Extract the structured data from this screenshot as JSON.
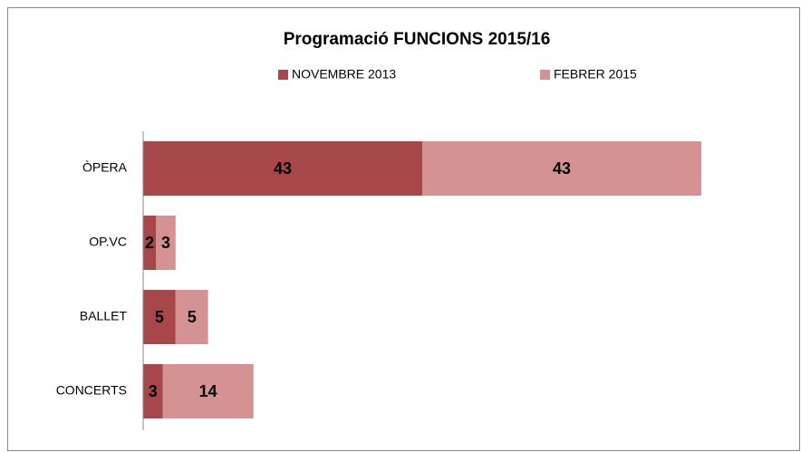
{
  "chart_data": {
    "type": "stacked-bar-horizontal",
    "title": "Programació FUNCIONS 2015/16",
    "categories": [
      "ÒPERA",
      "OP.VC",
      "BALLET",
      "CONCERTS"
    ],
    "series": [
      {
        "name": "NOVEMBRE 2013",
        "color": "#a8474a",
        "values": [
          43,
          2,
          5,
          3
        ]
      },
      {
        "name": "FEBRER 2015",
        "color": "#d49392",
        "values": [
          43,
          3,
          5,
          14
        ]
      }
    ],
    "legend": "top"
  }
}
